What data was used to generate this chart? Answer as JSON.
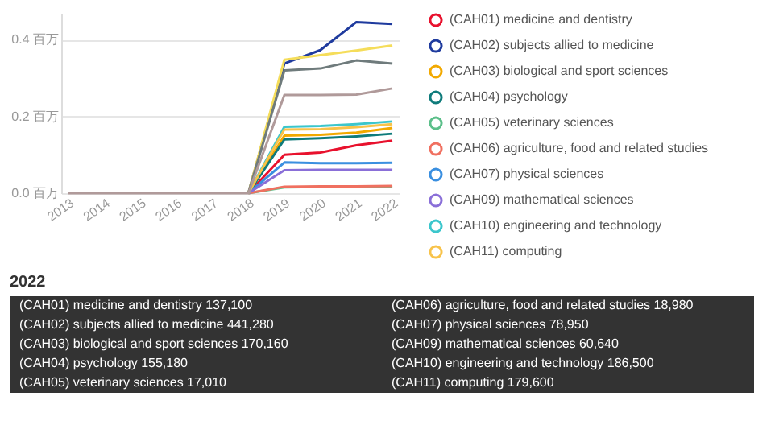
{
  "chart_data": [
    {
      "type": "line",
      "categories": [
        "2013",
        "2014",
        "2015",
        "2016",
        "2017",
        "2018",
        "2019",
        "2020",
        "2021",
        "2022"
      ],
      "ylim": [
        0,
        0.47
      ],
      "yticks": [
        {
          "value": 0,
          "label": "0.0 百万"
        },
        {
          "value": 0.2,
          "label": "0.2 百万"
        },
        {
          "value": 0.4,
          "label": "0.4 百万"
        }
      ],
      "grid": "y",
      "legend": "right",
      "series": [
        {
          "name": "(CAH01) medicine and dentistry",
          "color": "#e8112d",
          "values": [
            null,
            null,
            null,
            null,
            null,
            0,
            0.1,
            0.106,
            0.125,
            0.137
          ]
        },
        {
          "name": "(CAH02) subjects allied to medicine",
          "color": "#1f3b9e",
          "values": [
            null,
            null,
            null,
            null,
            null,
            0,
            0.338,
            0.373,
            0.446,
            0.441
          ]
        },
        {
          "name": "(CAH03) biological and sport sciences",
          "color": "#f2a900",
          "values": [
            null,
            null,
            null,
            null,
            null,
            0,
            0.15,
            0.152,
            0.158,
            0.17
          ]
        },
        {
          "name": "(CAH04) psychology",
          "color": "#0f7b7b",
          "values": [
            null,
            null,
            null,
            null,
            null,
            0,
            0.14,
            0.143,
            0.148,
            0.155
          ]
        },
        {
          "name": "(CAH05) veterinary sciences",
          "color": "#5cbf8a",
          "values": [
            null,
            null,
            null,
            null,
            null,
            0,
            0.015,
            0.016,
            0.016,
            0.017
          ]
        },
        {
          "name": "(CAH06) agriculture, food and related studies",
          "color": "#f07060",
          "values": [
            null,
            null,
            null,
            null,
            null,
            0,
            0.017,
            0.018,
            0.018,
            0.019
          ]
        },
        {
          "name": "(CAH07) physical sciences",
          "color": "#3a8fe0",
          "values": [
            null,
            null,
            null,
            null,
            null,
            0,
            0.08,
            0.078,
            0.078,
            0.079
          ]
        },
        {
          "name": "(CAH09) mathematical sciences",
          "color": "#8a6fd8",
          "values": [
            null,
            null,
            null,
            null,
            null,
            0,
            0.06,
            0.061,
            0.061,
            0.061
          ]
        },
        {
          "name": "(CAH10) engineering and technology",
          "color": "#3cc6cc",
          "values": [
            null,
            null,
            null,
            null,
            null,
            0,
            0.173,
            0.175,
            0.18,
            0.187
          ]
        },
        {
          "name": "(CAH11) computing",
          "color": "#f8c34a",
          "values": [
            null,
            null,
            null,
            null,
            null,
            0,
            0.166,
            0.167,
            0.172,
            0.18
          ]
        },
        {
          "color": "#f5dd5a",
          "values": [
            null,
            null,
            null,
            null,
            null,
            0,
            0.348,
            0.36,
            0.372,
            0.385
          ]
        },
        {
          "color": "#6f7b7c",
          "values": [
            null,
            null,
            null,
            null,
            null,
            0,
            0.32,
            0.325,
            0.346,
            0.338
          ]
        },
        {
          "color": "#b09a9a",
          "values": [
            0,
            0,
            0,
            0,
            0,
            0,
            0.256,
            0.256,
            0.257,
            0.273
          ]
        }
      ]
    },
    {
      "type": "other",
      "title": "2022",
      "annotations": [
        "(CAH01) medicine and dentistry 137,100",
        "(CAH02) subjects allied to medicine 441,280",
        "(CAH03) biological and sport sciences 170,160",
        "(CAH04) psychology 155,180",
        "(CAH05) veterinary sciences 17,010",
        "(CAH06) agriculture, food and related studies 18,980",
        "(CAH07) physical sciences 78,950",
        "(CAH09) mathematical sciences 60,640",
        "(CAH10) engineering and technology 186,500",
        "(CAH11) computing 179,600"
      ]
    }
  ]
}
